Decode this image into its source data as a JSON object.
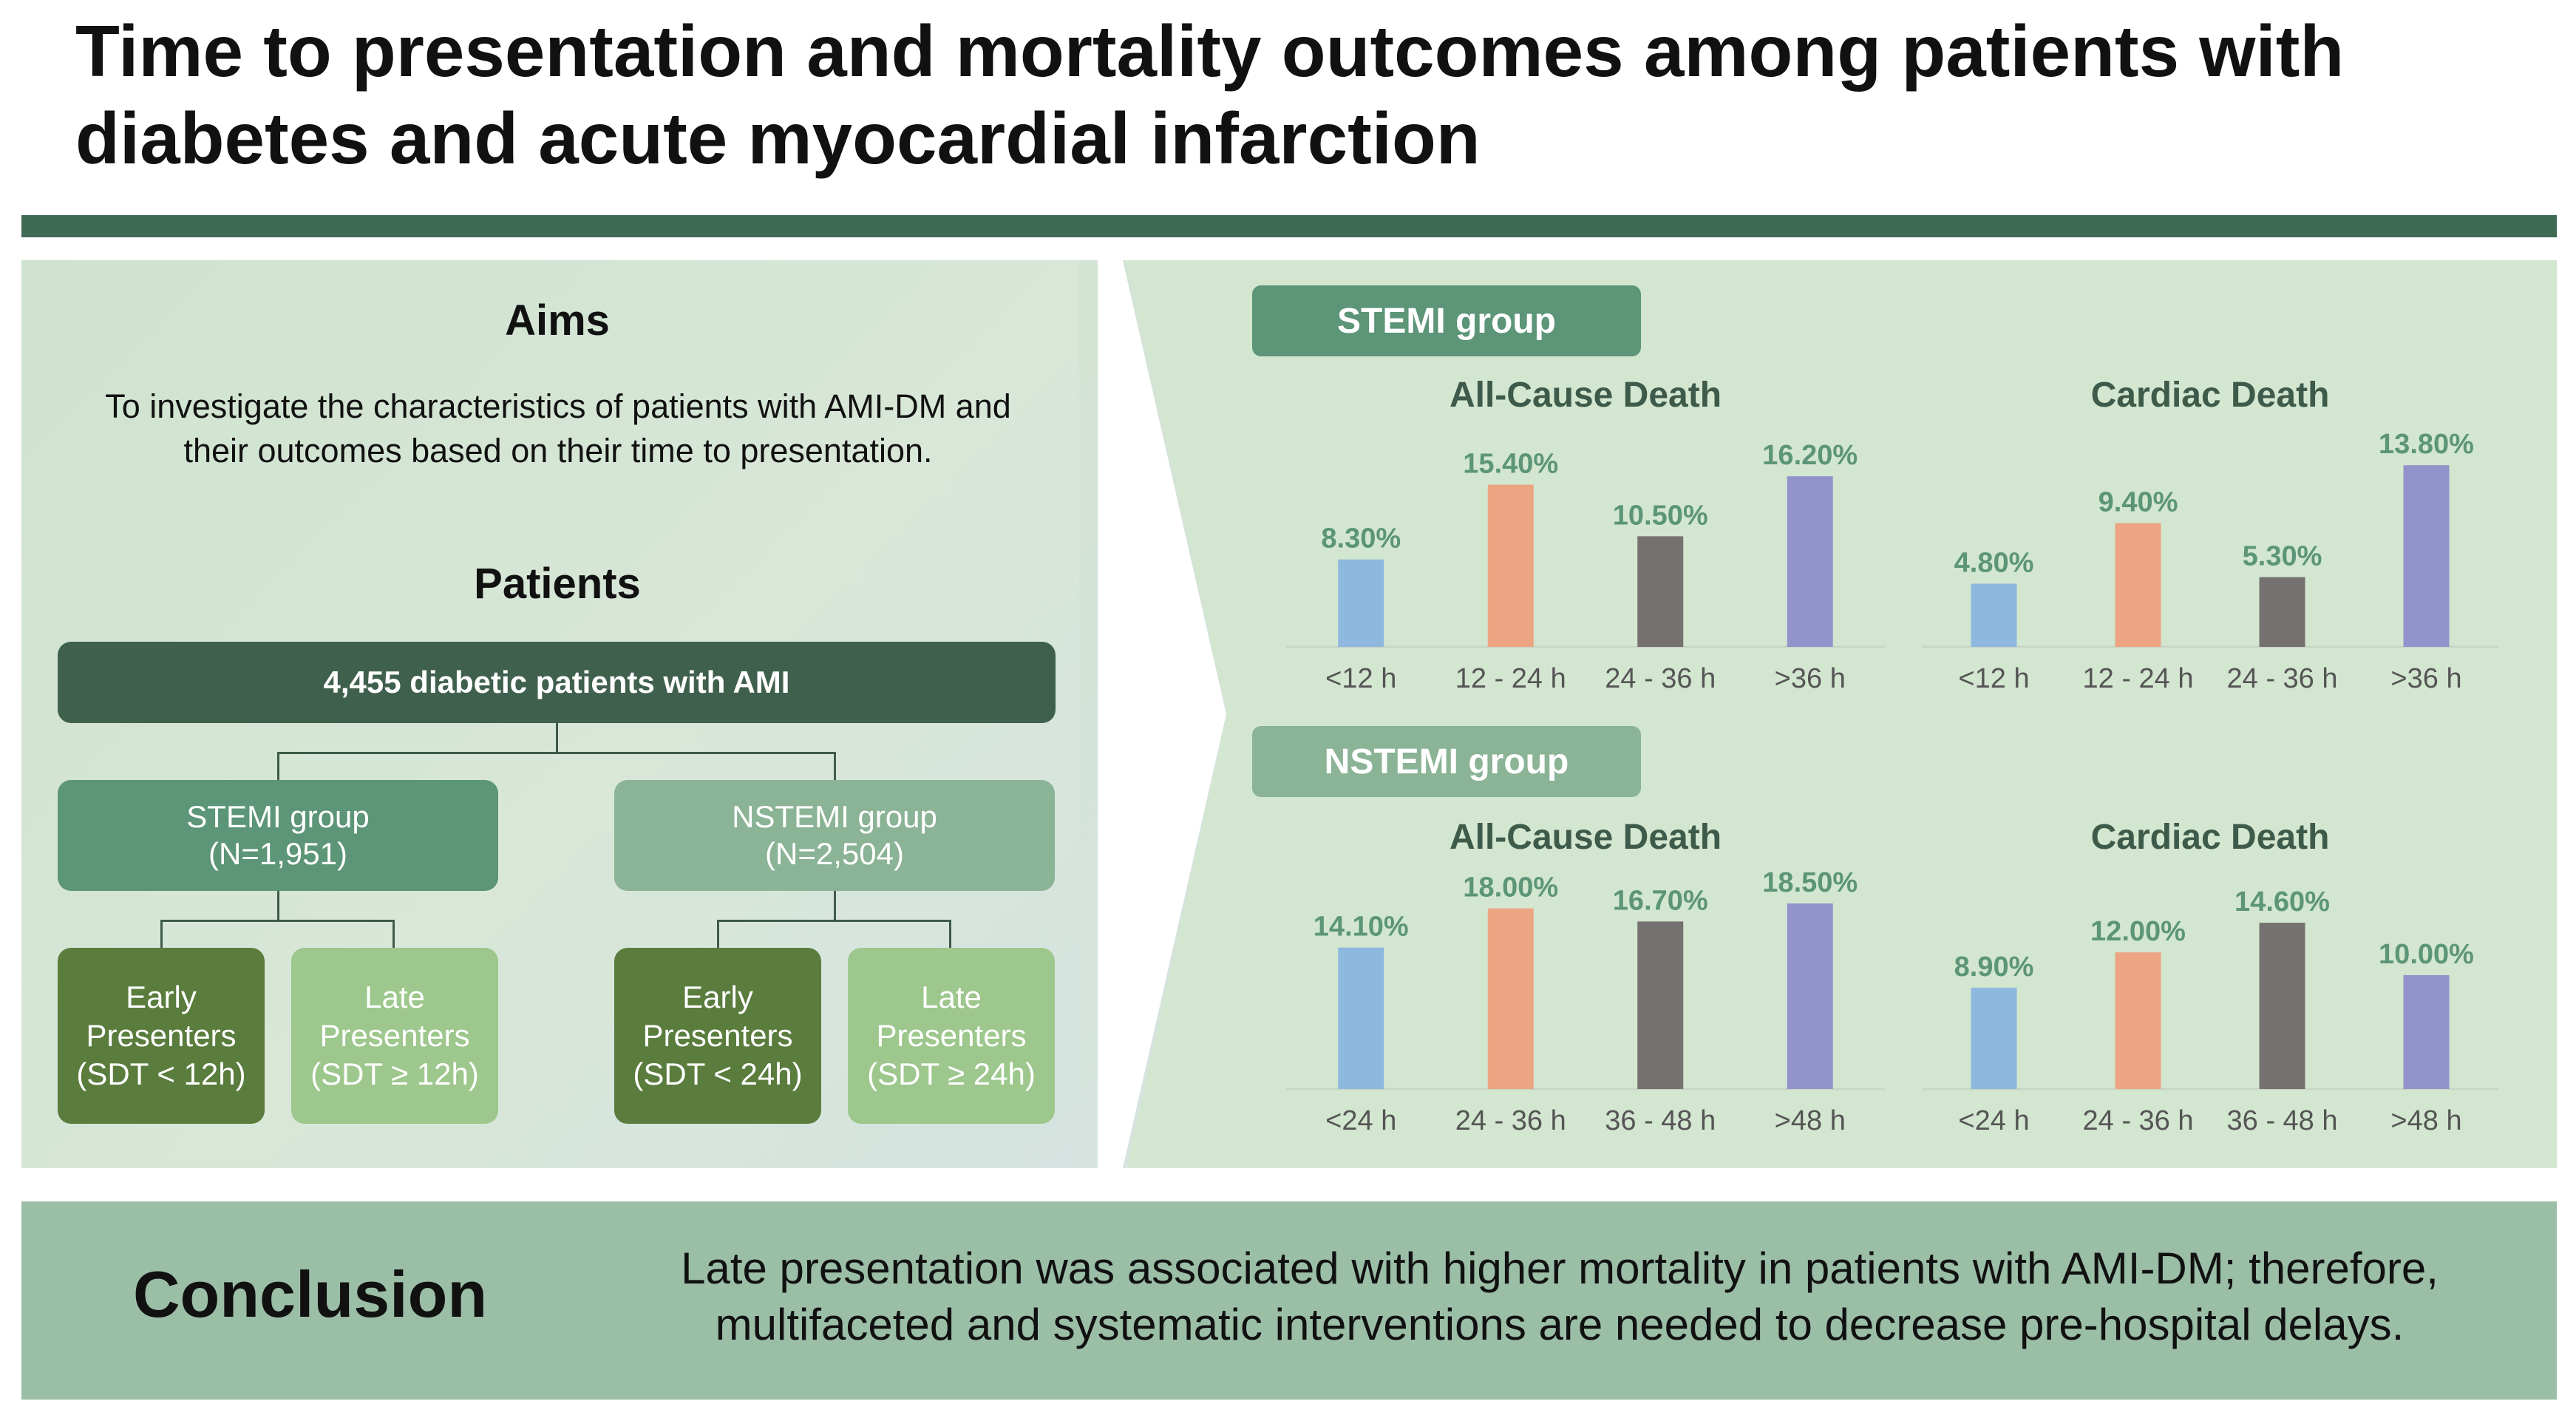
{
  "title": "Time to presentation and mortality outcomes among patients with diabetes and acute myocardial infarction",
  "aims": {
    "heading": "Aims",
    "text": "To investigate the characteristics of patients with AMI-DM and their outcomes based on their time to presentation."
  },
  "patients": {
    "heading": "Patients",
    "root": "4,455 diabetic patients with AMI",
    "stemi": {
      "line1": "STEMI group",
      "line2": "(N=1,951)",
      "early": [
        "Early",
        "Presenters",
        "(SDT < 12h)"
      ],
      "late": [
        "Late",
        "Presenters",
        "(SDT ≥ 12h)"
      ]
    },
    "nstemi": {
      "line1": "NSTEMI group",
      "line2": "(N=2,504)",
      "early": [
        "Early",
        "Presenters",
        "(SDT < 24h)"
      ],
      "late": [
        "Late",
        "Presenters",
        "(SDT ≥ 24h)"
      ]
    }
  },
  "groups": {
    "stemi_label": "STEMI group",
    "nstemi_label": "NSTEMI group"
  },
  "colors": {
    "bar1": "#8fb8de",
    "bar2": "#eda483",
    "bar3": "#767171",
    "bar4": "#9393cc",
    "label": "#5c9577"
  },
  "chart_data": [
    {
      "type": "bar",
      "title": "All-Cause Death",
      "group": "STEMI group",
      "categories": [
        "<12 h",
        "12 - 24 h",
        "24 - 36 h",
        ">36 h"
      ],
      "values": [
        8.3,
        15.4,
        10.5,
        16.2
      ],
      "value_labels": [
        "8.30%",
        "15.40%",
        "10.50%",
        "16.20%"
      ],
      "ylim": [
        0,
        20
      ]
    },
    {
      "type": "bar",
      "title": "Cardiac Death",
      "group": "STEMI group",
      "categories": [
        "<12 h",
        "12 - 24 h",
        "24 - 36 h",
        ">36 h"
      ],
      "values": [
        4.8,
        9.4,
        5.3,
        13.8
      ],
      "value_labels": [
        "4.80%",
        "9.40%",
        "5.30%",
        "13.80%"
      ],
      "ylim": [
        0,
        16
      ]
    },
    {
      "type": "bar",
      "title": "All-Cause Death",
      "group": "NSTEMI group",
      "categories": [
        "<24 h",
        "24 - 36 h",
        "36 - 48 h",
        ">48 h"
      ],
      "values": [
        14.1,
        18.0,
        16.7,
        18.5
      ],
      "value_labels": [
        "14.10%",
        "18.00%",
        "16.70%",
        "18.50%"
      ],
      "ylim": [
        0,
        21
      ]
    },
    {
      "type": "bar",
      "title": "Cardiac Death",
      "group": "NSTEMI group",
      "categories": [
        "<24 h",
        "24 - 36 h",
        "36 - 48 h",
        ">48 h"
      ],
      "values": [
        8.9,
        12.0,
        14.6,
        10.0
      ],
      "value_labels": [
        "8.90%",
        "12.00%",
        "14.60%",
        "10.00%"
      ],
      "ylim": [
        0,
        18.5
      ]
    }
  ],
  "conclusion": {
    "label": "Conclusion",
    "text": "Late presentation was associated with higher mortality in patients with AMI-DM; therefore, multifaceted and systematic interventions are needed to decrease pre-hospital delays."
  }
}
